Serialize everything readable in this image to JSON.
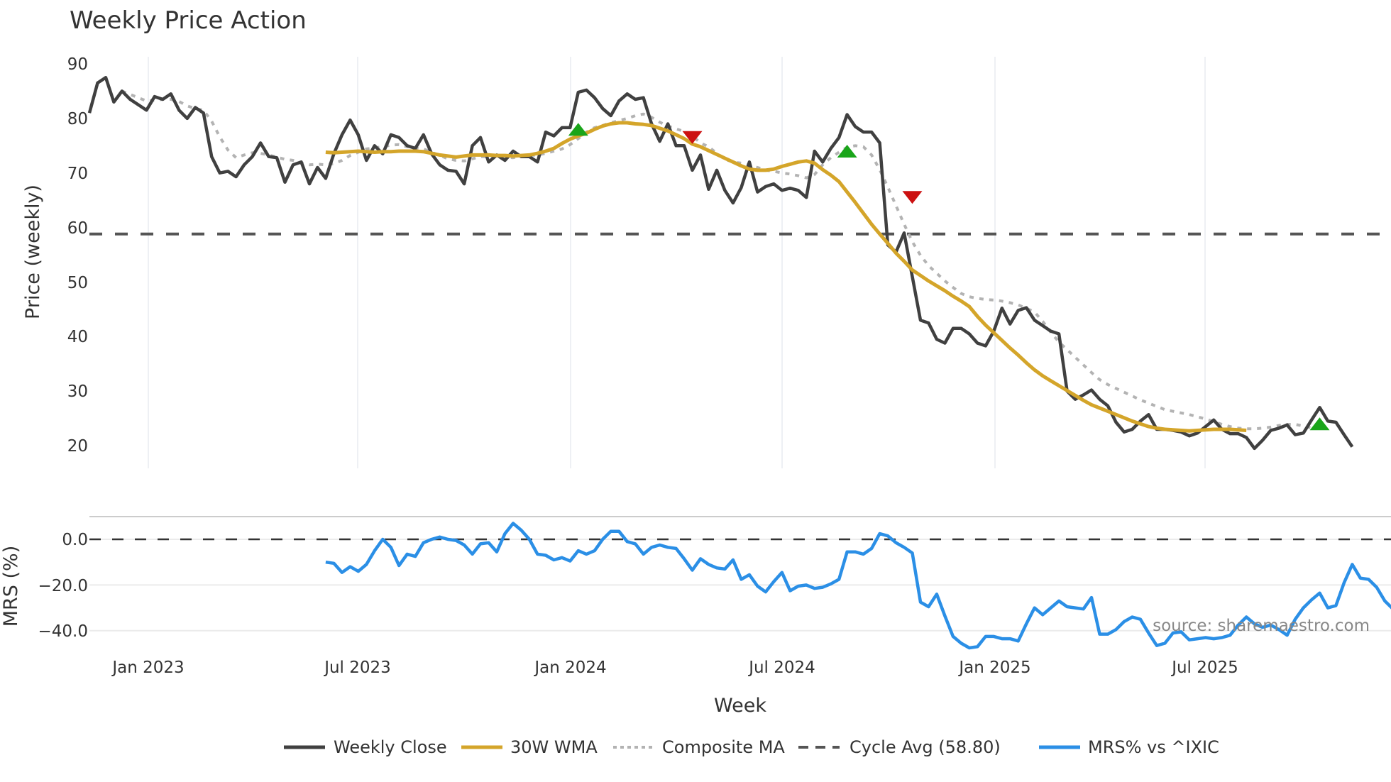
{
  "chart_data": [
    {
      "panel": "price",
      "type": "line",
      "title": "Weekly Price Action",
      "ylabel": "Price (weekly)",
      "xlabel": "Week",
      "ylim": [
        15.5,
        91
      ],
      "yticks": [
        20,
        30,
        40,
        50,
        60,
        70,
        80,
        90
      ],
      "xticks": [
        "Jan 2023",
        "Jul 2023",
        "Jan 2024",
        "Jul 2024",
        "Jan 2025",
        "Jul 2025"
      ],
      "grid": "vertical",
      "x_start": "2022-11-14",
      "x_frequency": "weekly",
      "series": [
        {
          "name": "Weekly Close",
          "color": "#404040",
          "values": [
            81,
            86.5,
            87.5,
            83,
            85,
            83.5,
            82.5,
            81.5,
            84,
            83.5,
            84.5,
            81.5,
            80,
            82,
            81,
            73,
            70,
            70.3,
            69.3,
            71.5,
            73,
            75.5,
            73,
            72.8,
            68.3,
            71.5,
            72,
            68,
            71,
            69,
            73.5,
            77,
            79.7,
            77,
            72.3,
            75,
            73.5,
            77,
            76.5,
            75,
            74.5,
            77,
            73.5,
            71.5,
            70.5,
            70.3,
            68,
            75,
            76.5,
            72,
            73.3,
            72.3,
            74,
            73,
            73,
            72,
            77.5,
            76.8,
            78.3,
            78.3,
            84.8,
            85.2,
            83.8,
            81.8,
            80.5,
            83.2,
            84.5,
            83.5,
            83.8,
            79,
            75.8,
            79,
            75,
            75,
            70.5,
            73.3,
            67,
            70.5,
            66.8,
            64.5,
            67.3,
            72,
            66.5,
            67.5,
            68,
            66.8,
            67.2,
            66.8,
            65.5,
            74,
            72,
            74.5,
            76.5,
            80.7,
            78.5,
            77.5,
            77.5,
            75.5,
            56.8,
            55.5,
            59,
            51,
            43,
            42.5,
            39.5,
            38.8,
            41.5,
            41.5,
            40.5,
            38.8,
            38.3,
            41,
            45.2,
            42.3,
            44.8,
            45.3,
            43,
            42,
            41,
            40.5,
            30,
            28.5,
            29.3,
            30.2,
            28.5,
            27.3,
            24.3,
            22.5,
            23,
            24.5,
            25.7,
            23,
            23,
            22.8,
            22.5,
            21.8,
            22.3,
            23.5,
            24.7,
            23,
            22.2,
            22.2,
            21.5,
            19.5,
            21,
            22.8,
            23.2,
            23.8,
            22,
            22.3,
            24.7,
            27,
            24.5,
            24.3,
            22,
            19.8
          ]
        },
        {
          "name": "30W WMA",
          "color": "#D4A52A",
          "start_index": 29,
          "values": [
            73.8,
            73.7,
            73.8,
            73.9,
            74,
            73.9,
            73.8,
            73.9,
            73.9,
            74,
            74,
            74,
            73.9,
            73.6,
            73.3,
            73.1,
            72.9,
            73.1,
            73.3,
            73.3,
            73.3,
            73.2,
            73.2,
            73.1,
            73.2,
            73.3,
            73.6,
            74,
            74.5,
            75.4,
            76.2,
            76.8,
            77.3,
            78,
            78.6,
            79,
            79.2,
            79.2,
            79,
            78.9,
            78.7,
            78.2,
            77.7,
            77,
            76.3,
            75.3,
            74.8,
            74.1,
            73.4,
            72.7,
            72,
            71.3,
            70.7,
            70.5,
            70.5,
            70.7,
            71.2,
            71.6,
            72,
            72.2,
            71.8,
            70.6,
            69.6,
            68.4,
            66.5,
            64.6,
            62.6,
            60.6,
            58.8,
            57.1,
            55.3,
            53.8,
            52.2,
            51.2,
            50.2,
            49.3,
            48.4,
            47.4,
            46.5,
            45.5,
            43.7,
            42.1,
            40.7,
            39.3,
            37.9,
            36.6,
            35.2,
            33.9,
            32.8,
            31.9,
            31,
            30.1,
            29.2,
            28.3,
            27.5,
            26.9,
            26.3,
            25.7,
            25.1,
            24.5,
            24,
            23.5,
            23.2,
            23,
            22.9,
            22.8,
            22.7,
            22.8,
            22.9,
            23,
            23,
            23,
            22.9,
            22.8
          ]
        },
        {
          "name": "Composite MA",
          "color": "#B3B3B3",
          "start_index": 4,
          "values": [
            85,
            84.4,
            83.8,
            83.2,
            83.3,
            83.5,
            83.5,
            83.1,
            82.3,
            81.8,
            81.5,
            79.5,
            76.6,
            74.2,
            72.8,
            73.3,
            73.7,
            73.6,
            73.3,
            72.9,
            72.5,
            72.3,
            71.8,
            71.5,
            71.6,
            71.5,
            71.7,
            72.3,
            73.2,
            73.8,
            74.4,
            74.6,
            74.8,
            75.1,
            75.2,
            74.8,
            74.6,
            74.4,
            73.8,
            73.2,
            72.6,
            72.3,
            72.2,
            72.6,
            73,
            73,
            72.9,
            72.9,
            72.8,
            73.1,
            73.2,
            73.3,
            73.6,
            74,
            74.4,
            75.2,
            76.3,
            77.5,
            78.3,
            78.7,
            79.2,
            79.6,
            80,
            80.5,
            80.8,
            80.2,
            79.3,
            78.6,
            78.1,
            77.6,
            76.8,
            75.5,
            74.8,
            73.6,
            72.5,
            72,
            71.8,
            71.4,
            71,
            70.5,
            70.3,
            70,
            69.8,
            69.5,
            69.1,
            69.7,
            71.5,
            72.8,
            73.8,
            74.7,
            75,
            74.8,
            73.3,
            70.6,
            67.4,
            64,
            60.6,
            57.4,
            54.9,
            53,
            51.6,
            50.2,
            49,
            47.9,
            47.3,
            47,
            46.8,
            46.7,
            46.5,
            46.2,
            45.8,
            45.2,
            44.5,
            42.8,
            40.8,
            39,
            37.6,
            36.2,
            34.8,
            33.4,
            32.1,
            31.2,
            30.5,
            29.8,
            29.1,
            28.4,
            27.8,
            27.2,
            26.6,
            26.3,
            26,
            25.7,
            25.3,
            24.9,
            24.4,
            23.9,
            23.5,
            23.2,
            23.1,
            23.1,
            23.2,
            23.4,
            23.7,
            23.9,
            23.9,
            23.6,
            23.3
          ]
        },
        {
          "name": "Cycle Avg (58.80)",
          "color": "#555555",
          "style": "dashed",
          "constant": 58.8
        }
      ],
      "markers": [
        {
          "type": "buy",
          "shape": "triangle-up",
          "color": "#1AA51A",
          "x_index": 60,
          "y": 78
        },
        {
          "type": "sell",
          "shape": "triangle-down",
          "color": "#CC1111",
          "x_index": 74,
          "y": 76.5
        },
        {
          "type": "buy",
          "shape": "triangle-up",
          "color": "#1AA51A",
          "x_index": 93,
          "y": 74
        },
        {
          "type": "sell",
          "shape": "triangle-down",
          "color": "#CC1111",
          "x_index": 101,
          "y": 65.5
        },
        {
          "type": "buy",
          "shape": "triangle-up",
          "color": "#1AA51A",
          "x_index": 151,
          "y": 24
        }
      ]
    },
    {
      "panel": "mrs",
      "type": "line",
      "ylabel": "MRS (%)",
      "ylim": [
        -50,
        8
      ],
      "yticks": [
        0.0,
        -20.0,
        -40.0
      ],
      "ytick_labels": [
        "0.0",
        "−20.0",
        "−40.0"
      ],
      "grid": "horizontal",
      "series": [
        {
          "name": "MRS% vs ^IXIC",
          "color": "#2B8FE6",
          "start_index": 29,
          "values": [
            -10,
            -10.5,
            -14.5,
            -12,
            -14,
            -11,
            -5,
            0,
            -3.5,
            -11.5,
            -6.5,
            -7.5,
            -1.5,
            0,
            1,
            0,
            -0.5,
            -2.5,
            -6.5,
            -2,
            -1.5,
            -5.5,
            2.5,
            7,
            4,
            0,
            -6.5,
            -7,
            -9,
            -8,
            -9.5,
            -5,
            -6.5,
            -5,
            0,
            3.5,
            3.5,
            -1,
            -2,
            -6.5,
            -3.5,
            -2.5,
            -3.5,
            -4,
            -8.5,
            -13.5,
            -8.5,
            -11,
            -12.5,
            -13,
            -9,
            -17.5,
            -15.5,
            -20.5,
            -23,
            -18.5,
            -14.5,
            -22.5,
            -20.5,
            -20,
            -21.5,
            -21,
            -19.5,
            -17.5,
            -5.5,
            -5.5,
            -6.5,
            -4,
            2.5,
            1.5,
            -1.5,
            -3.5,
            -6,
            -27.5,
            -29.5,
            -24,
            -33.5,
            -42.5,
            -45.5,
            -47.5,
            -47,
            -42.5,
            -42.5,
            -43.5,
            -43.5,
            -44.5,
            -37,
            -30,
            -33,
            -30,
            -27,
            -29.5,
            -30,
            -30.5,
            -25.5,
            -41.5,
            -41.5,
            -39.5,
            -36,
            -34,
            -35,
            -41,
            -46.5,
            -45.5,
            -41,
            -40.5,
            -44,
            -43.5,
            -43,
            -43.5,
            -43,
            -42,
            -37.5,
            -34,
            -37,
            -38.5,
            -37.5,
            -39.5,
            -42,
            -35,
            -30,
            -26.5,
            -23.5,
            -30,
            -29,
            -19,
            -11,
            -17,
            -17.5,
            -21,
            -27,
            -30.5
          ]
        },
        {
          "name": "Zero line",
          "color": "#333333",
          "style": "dashed",
          "constant": 0
        }
      ]
    }
  ],
  "title": "Weekly Price Action",
  "axes": {
    "price_ylabel": "Price (weekly)",
    "mrs_ylabel": "MRS (%)",
    "xlabel": "Week",
    "price_ticks": [
      "90",
      "80",
      "70",
      "60",
      "50",
      "40",
      "30",
      "20"
    ],
    "mrs_ticks": [
      "0.0",
      "−20.0",
      "−40.0"
    ],
    "x_ticks": [
      "Jan 2023",
      "Jul 2023",
      "Jan 2024",
      "Jul 2024",
      "Jan 2025",
      "Jul 2025"
    ]
  },
  "legend": {
    "items": [
      {
        "label": "Weekly Close",
        "color": "#404040",
        "style": "solid"
      },
      {
        "label": "30W WMA",
        "color": "#D4A52A",
        "style": "solid"
      },
      {
        "label": "Composite MA",
        "color": "#B3B3B3",
        "style": "dotted"
      },
      {
        "label": "Cycle Avg (58.80)",
        "color": "#555555",
        "style": "dashed"
      },
      {
        "label": "MRS% vs ^IXIC",
        "color": "#2B8FE6",
        "style": "solid"
      }
    ]
  },
  "watermark": "source: sharemaestro.com"
}
